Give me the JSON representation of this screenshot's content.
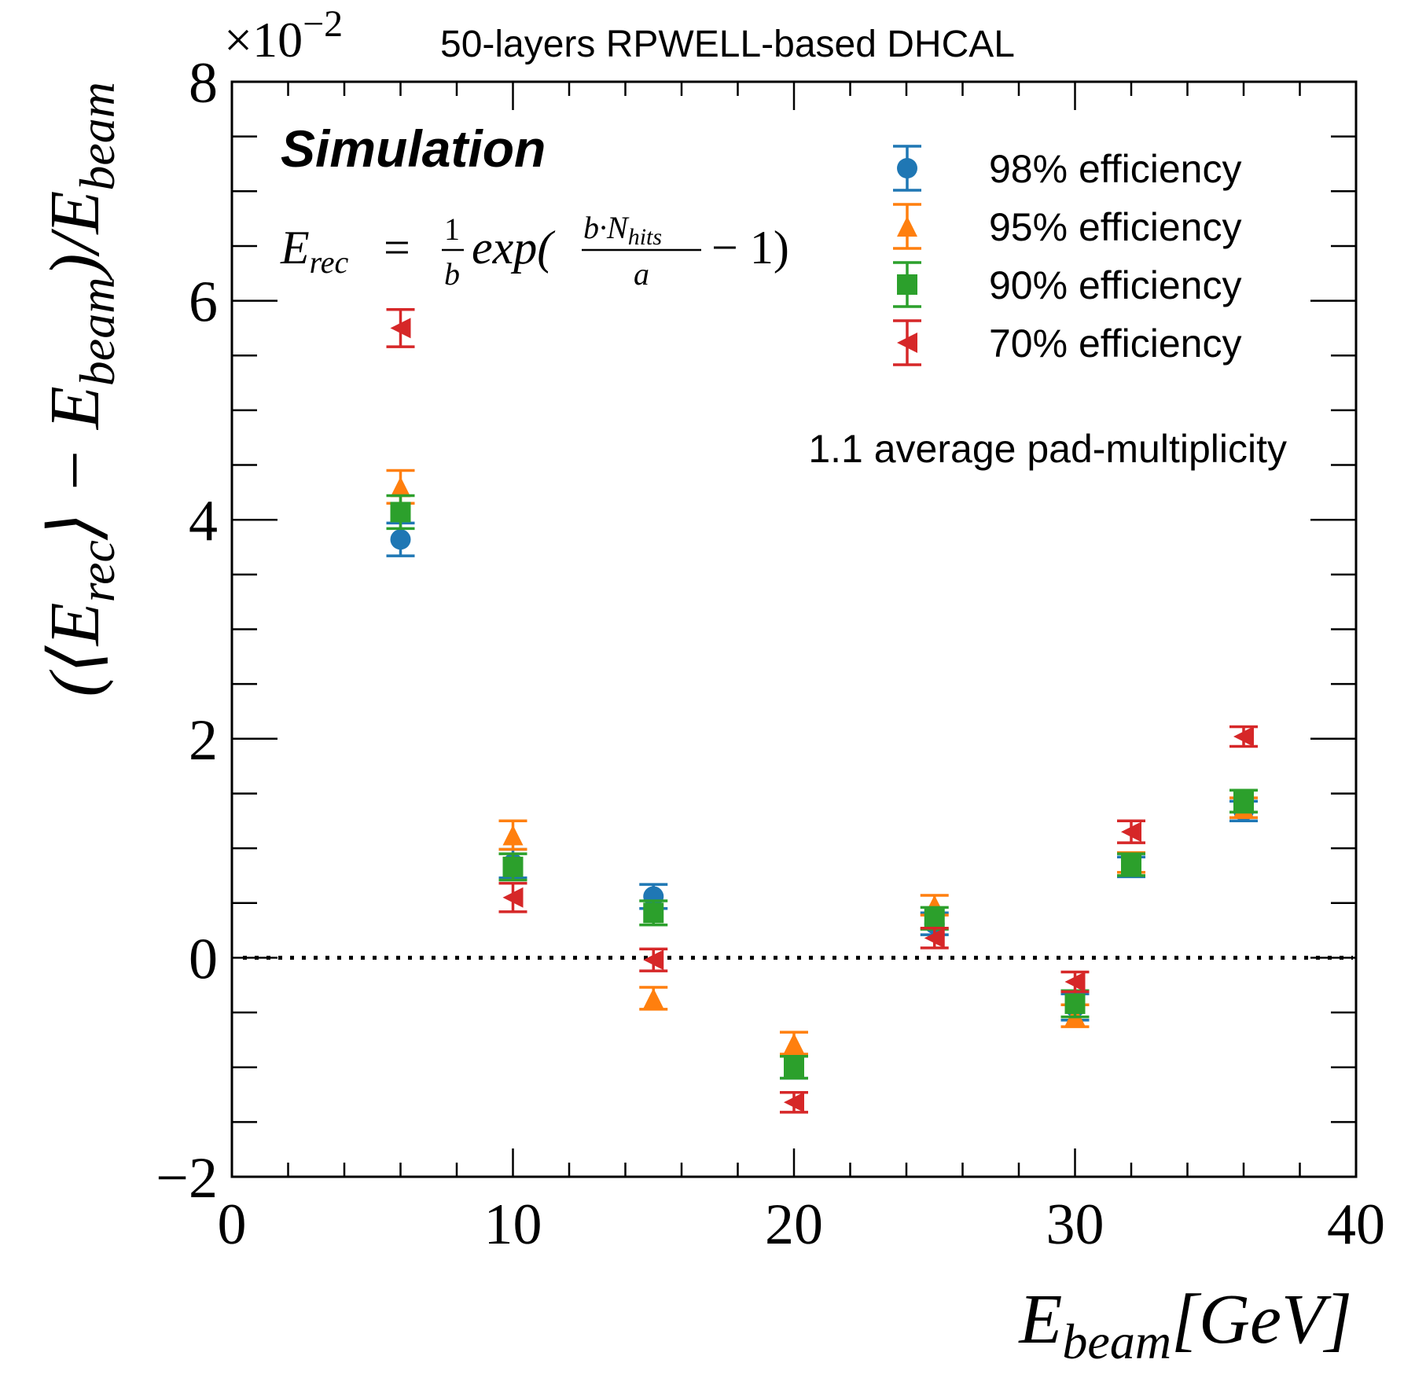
{
  "chart_data": {
    "type": "scatter",
    "title": "50-layers RPWELL-based DHCAL",
    "simulation_label": "Simulation",
    "formula": {
      "lhs": "E",
      "lhs_sub": "rec",
      "equals": "=",
      "frac1_num": "1",
      "frac1_den": "b",
      "func": "exp(",
      "frac2_num_b": "b·N",
      "frac2_num_sub": "hits",
      "frac2_den": "a",
      "tail": "− 1)"
    },
    "annotation": "1.1 average pad-multiplicity",
    "multiplier": {
      "base": "×10",
      "exponent": "−2"
    },
    "xlabel": {
      "main": "E",
      "sub": "beam",
      "unit": "[GeV]"
    },
    "ylabel": {
      "open": "(⟨E",
      "sub1": "rec",
      "mid": "⟩ − E",
      "sub2": "beam",
      "end": ")/E",
      "sub3": "beam"
    },
    "xlim": [
      0,
      40
    ],
    "ylim": [
      -2,
      8
    ],
    "xticks": [
      0,
      10,
      20,
      30,
      40
    ],
    "yticks": [
      -2,
      0,
      2,
      4,
      6,
      8
    ],
    "xtick_labels": [
      "0",
      "10",
      "20",
      "30",
      "40"
    ],
    "ytick_labels": [
      "−2",
      "0",
      "2",
      "4",
      "6",
      "8"
    ],
    "reference_line": {
      "y": 0,
      "style": "dotted"
    },
    "series": [
      {
        "name": "98% efficiency",
        "marker": "circle",
        "color": "#1f77b4",
        "x": [
          6,
          10,
          15,
          20,
          25,
          30,
          32,
          36
        ],
        "y": [
          3.82,
          0.86,
          0.56,
          -1.0,
          0.31,
          -0.45,
          0.83,
          1.34
        ],
        "yerr": [
          0.15,
          0.13,
          0.11,
          0.1,
          0.1,
          0.12,
          0.09,
          0.09
        ]
      },
      {
        "name": "95% efficiency",
        "marker": "triangle",
        "color": "#ff7f0e",
        "x": [
          6,
          10,
          15,
          20,
          25,
          30,
          32,
          36
        ],
        "y": [
          4.3,
          1.12,
          -0.37,
          -0.78,
          0.48,
          -0.53,
          0.87,
          1.37
        ],
        "yerr": [
          0.15,
          0.13,
          0.1,
          0.1,
          0.09,
          0.1,
          0.09,
          0.09
        ]
      },
      {
        "name": "90% efficiency",
        "marker": "square",
        "color": "#2ca02c",
        "x": [
          6,
          10,
          15,
          20,
          25,
          30,
          32,
          36
        ],
        "y": [
          4.07,
          0.83,
          0.41,
          -1.0,
          0.36,
          -0.42,
          0.85,
          1.43
        ],
        "yerr": [
          0.15,
          0.12,
          0.11,
          0.1,
          0.1,
          0.12,
          0.1,
          0.1
        ]
      },
      {
        "name": "70% efficiency",
        "marker": "left-triangle",
        "color": "#d62728",
        "x": [
          6,
          10,
          15,
          20,
          25,
          30,
          32,
          36
        ],
        "y": [
          5.75,
          0.55,
          -0.02,
          -1.32,
          0.18,
          -0.22,
          1.15,
          2.02
        ],
        "yerr": [
          0.17,
          0.13,
          0.1,
          0.09,
          0.09,
          0.09,
          0.1,
          0.09
        ]
      }
    ]
  }
}
